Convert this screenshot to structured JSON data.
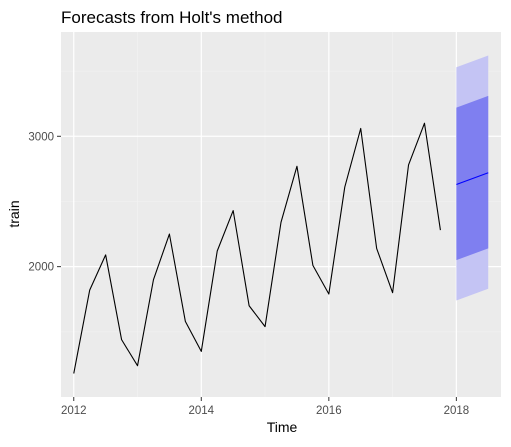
{
  "chart_data": {
    "type": "line",
    "title": "Forecasts from Holt's method",
    "xlabel": "Time",
    "ylabel": "train",
    "xlim": [
      2011.8,
      2018.7
    ],
    "ylim": [
      1000,
      3800
    ],
    "x_ticks": [
      2012,
      2014,
      2016,
      2018
    ],
    "x_tick_labels": [
      "2012",
      "2014",
      "2016",
      "2018"
    ],
    "y_ticks": [
      2000,
      3000
    ],
    "y_tick_labels": [
      "2000",
      "3000"
    ],
    "grid": true,
    "legend": "none",
    "series": [
      {
        "x": [
          2012.0,
          2012.25,
          2012.5,
          2012.75,
          2013.0,
          2013.25,
          2013.5,
          2013.75,
          2014.0,
          2014.25,
          2014.5,
          2014.75,
          2015.0,
          2015.25,
          2015.5,
          2015.75,
          2016.0,
          2016.25,
          2016.5,
          2016.75,
          2017.0,
          2017.25,
          2017.5,
          2017.75
        ],
        "values": [
          1180,
          1820,
          2090,
          1440,
          1240,
          1900,
          2250,
          1580,
          1350,
          2120,
          2430,
          1700,
          1540,
          2340,
          2770,
          2010,
          1790,
          2610,
          3060,
          2140,
          1800,
          2780,
          3100,
          2280
        ],
        "color": "#000000"
      }
    ],
    "forecast": {
      "x": [
        2018.0,
        2018.5
      ],
      "mean": [
        2630,
        2720
      ],
      "lower_80": [
        2050,
        2140
      ],
      "upper_80": [
        3220,
        3310
      ],
      "lower_95": [
        1740,
        1830
      ],
      "upper_95": [
        3530,
        3620
      ],
      "mean_color": "#0000ff",
      "band_80_color": "#7f7ff0",
      "band_95_color": "#c4c4f4"
    },
    "colors": {
      "panel_background": "#ebebeb",
      "grid_major": "#ffffff",
      "grid_minor": "#f2f2f2"
    }
  }
}
